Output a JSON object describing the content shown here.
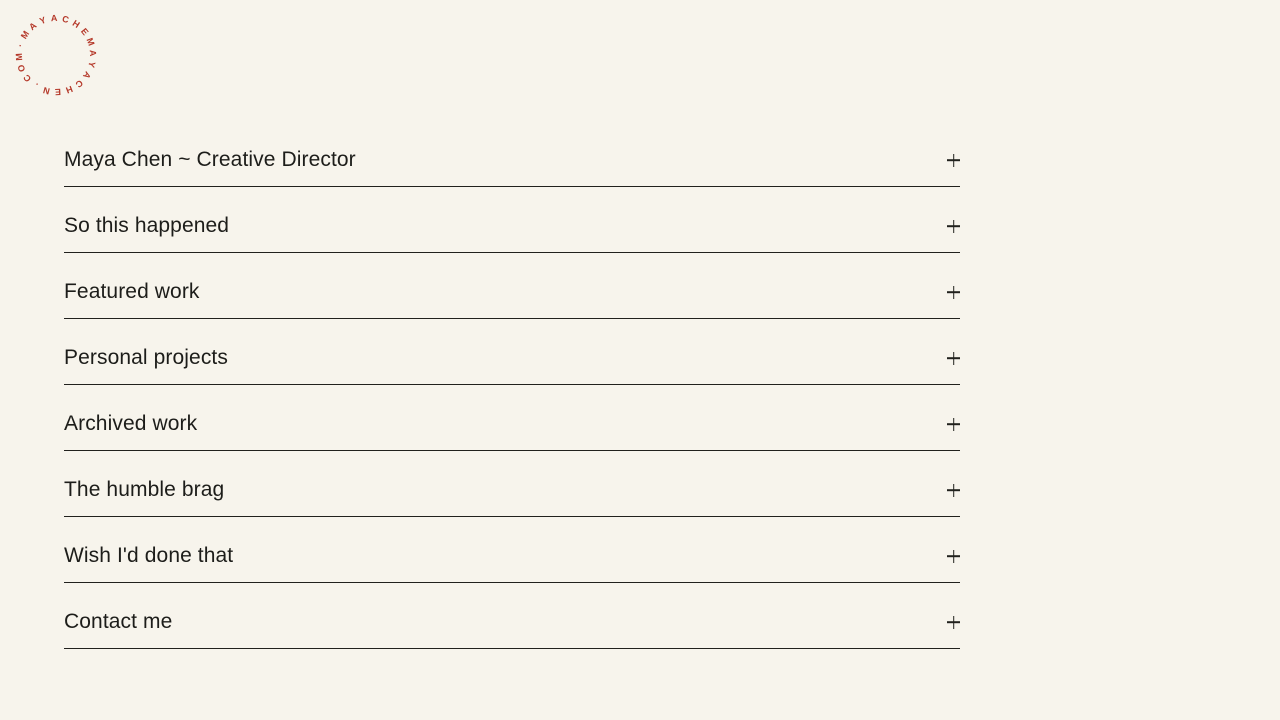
{
  "page": {
    "background_color": "#f7f4ec",
    "ink_color": "#1d1d1a"
  },
  "logo": {
    "ring_text": "MAYACHEMAYACHEN.COM·",
    "color": "#b5392a"
  },
  "accordion": {
    "toggle_glyph": "+",
    "items": [
      {
        "label": "Maya Chen ~ Creative Director"
      },
      {
        "label": "So this happened"
      },
      {
        "label": "Featured work"
      },
      {
        "label": "Personal projects"
      },
      {
        "label": "Archived work"
      },
      {
        "label": "The humble brag"
      },
      {
        "label": "Wish I'd done that"
      },
      {
        "label": "Contact me"
      }
    ]
  }
}
